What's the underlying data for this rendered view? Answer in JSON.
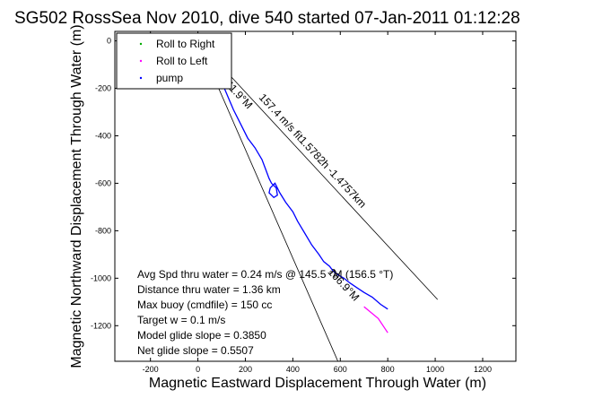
{
  "chart_data": {
    "type": "line",
    "title": "SG502 RossSea Nov 2010, dive 540 started 07-Jan-2011 01:12:28",
    "xlabel": "Magnetic Eastward Displacement Through Water (m)",
    "ylabel": "Magnetic Northward Displacement Through Water (m)",
    "xlim": [
      -350,
      1340
    ],
    "ylim": [
      -1350,
      40
    ],
    "xticks": [
      -200,
      0,
      200,
      400,
      600,
      800,
      1000,
      1200
    ],
    "yticks": [
      0,
      -200,
      -400,
      -600,
      -800,
      -1000,
      -1200
    ],
    "grid": false,
    "legend_position": "top-left",
    "legend": [
      {
        "label": "Roll to Right",
        "color": "#00aa00",
        "marker": "dot"
      },
      {
        "label": "Roll to Left",
        "color": "#ff00ff",
        "marker": "dot"
      },
      {
        "label": "pump",
        "color": "#0000ff",
        "marker": "dot"
      }
    ],
    "series": [
      {
        "color": "#0000ff",
        "x": [
          0,
          20,
          40,
          50,
          45,
          60,
          90,
          120,
          150,
          180,
          210,
          240,
          270,
          285,
          300,
          310,
          330,
          335,
          320,
          300,
          305,
          325,
          345,
          370,
          400,
          420,
          450,
          480,
          510,
          530,
          555,
          570,
          590,
          615,
          640,
          670,
          700,
          735,
          770,
          800
        ],
        "y": [
          -10,
          5,
          0,
          -20,
          -40,
          -70,
          -150,
          -220,
          -290,
          -350,
          -410,
          -450,
          -500,
          -540,
          -580,
          -600,
          -620,
          -650,
          -660,
          -640,
          -620,
          -600,
          -640,
          -680,
          -720,
          -760,
          -810,
          -860,
          -900,
          -930,
          -950,
          -970,
          -985,
          -1000,
          -1020,
          -1040,
          -1060,
          -1080,
          -1110,
          -1130
        ]
      },
      {
        "color": "#ff00ff",
        "x": [
          700,
          760,
          800
        ],
        "y": [
          -1120,
          -1170,
          -1230
        ]
      }
    ],
    "guide_lines": [
      {
        "x": [
          0,
          1010
        ],
        "y": [
          0,
          -1090
        ]
      },
      {
        "x": [
          0,
          590
        ],
        "y": [
          0,
          -1350
        ]
      }
    ],
    "annotations": [
      {
        "text": "157.4 m/s fit1.5782h -1.4757km",
        "at": [
          255,
          -240
        ],
        "rotate": 47
      },
      {
        "text": "141.9°M",
        "at": [
          95,
          -165
        ],
        "rotate": 47
      },
      {
        "text": "166.9°M",
        "at": [
          545,
          -975
        ],
        "rotate": 47
      }
    ],
    "stats": [
      "Avg Spd thru water =  0.24 m/s @ 145.5   °M (156.5 °T)",
      "Distance thru water =  1.36 km",
      "Max buoy (cmdfile) = 150 cc",
      "Target w = 0.1 m/s",
      "Model glide slope = 0.3850",
      "Net glide slope = 0.5507"
    ]
  }
}
